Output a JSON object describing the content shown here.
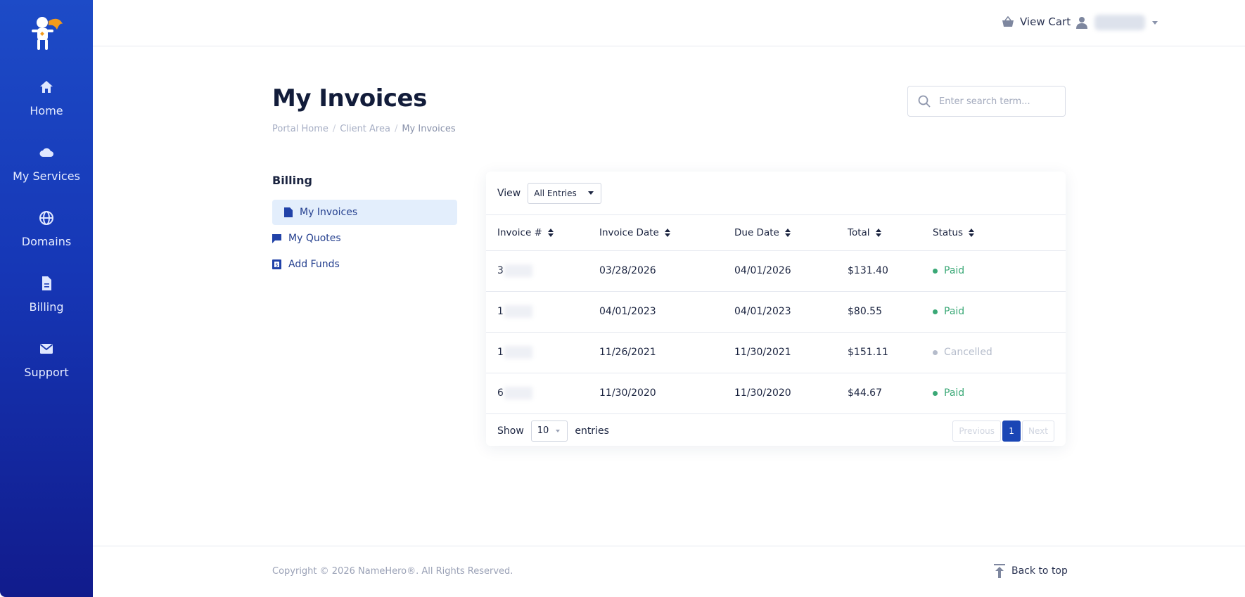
{
  "sidebar": {
    "items": [
      {
        "label": "Home",
        "icon": "home-icon"
      },
      {
        "label": "My Services",
        "icon": "cloud-icon"
      },
      {
        "label": "Domains",
        "icon": "globe-icon"
      },
      {
        "label": "Billing",
        "icon": "document-icon"
      },
      {
        "label": "Support",
        "icon": "envelope-icon"
      }
    ]
  },
  "topbar": {
    "cart_label": "View Cart"
  },
  "page": {
    "title": "My Invoices",
    "breadcrumb": [
      "Portal Home",
      "Client Area",
      "My Invoices"
    ],
    "search_placeholder": "Enter search term..."
  },
  "billing_menu": {
    "title": "Billing",
    "items": [
      {
        "label": "My Invoices",
        "icon": "file-icon",
        "active": true
      },
      {
        "label": "My Quotes",
        "icon": "comment-icon",
        "active": false
      },
      {
        "label": "Add Funds",
        "icon": "wallet-icon",
        "active": false
      }
    ]
  },
  "invoices": {
    "view_label": "View",
    "filter_value": "All Entries",
    "columns": [
      "Invoice #",
      "Invoice Date",
      "Due Date",
      "Total",
      "Status"
    ],
    "rows": [
      {
        "num": "3",
        "invoice_date": "03/28/2026",
        "due_date": "04/01/2026",
        "total": "$131.40",
        "status": "Paid"
      },
      {
        "num": "1",
        "invoice_date": "04/01/2023",
        "due_date": "04/01/2023",
        "total": "$80.55",
        "status": "Paid"
      },
      {
        "num": "1",
        "invoice_date": "11/26/2021",
        "due_date": "11/30/2021",
        "total": "$151.11",
        "status": "Cancelled"
      },
      {
        "num": "6",
        "invoice_date": "11/30/2020",
        "due_date": "11/30/2020",
        "total": "$44.67",
        "status": "Paid"
      }
    ],
    "show_label": "Show",
    "page_length": "10",
    "entries_label": "entries",
    "pagination": {
      "previous": "Previous",
      "current": "1",
      "next": "Next"
    }
  },
  "colors": {
    "paid": "#3aa876",
    "cancelled": "#b5bccb",
    "accent": "#1a46b5"
  },
  "footer": {
    "copyright": "Copyright © 2026 NameHero®. All Rights Reserved.",
    "back_to_top": "Back to top"
  }
}
